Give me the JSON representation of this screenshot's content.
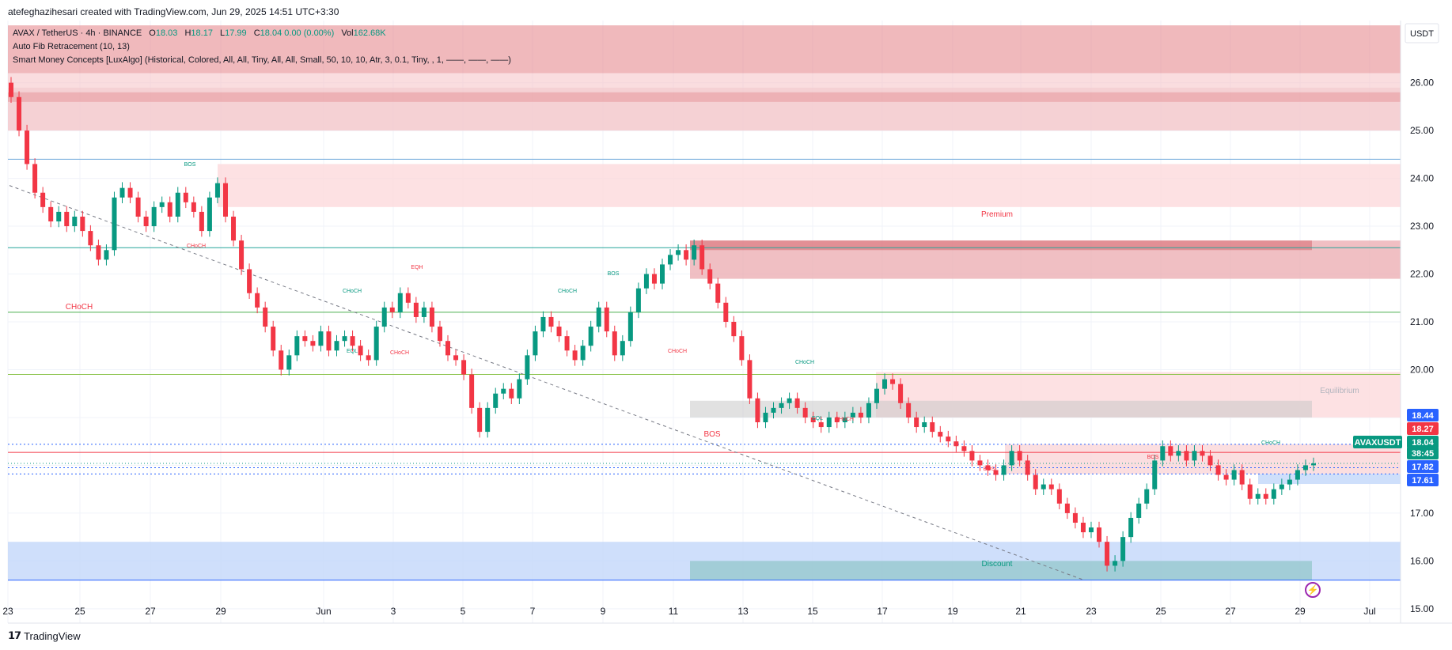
{
  "header": {
    "created_by": "atefeghazihesari created with TradingView.com, Jun 29, 2025 14:51 UTC+3:30"
  },
  "legend": {
    "symbol": "AVAX / TetherUS · 4h · BINANCE",
    "open_label": "O",
    "open": "18.03",
    "high_label": "H",
    "high": "18.17",
    "low_label": "L",
    "low": "17.99",
    "close_label": "C",
    "close": "18.04",
    "change": "0.00 (0.00%)",
    "vol_label": "Vol",
    "vol": "162.68K",
    "indicator1": "Auto Fib Retracement (10, 13)",
    "indicator2": "Smart Money Concepts [LuxAlgo] (Historical, Colored, All, All, Tiny, All, All, Small, 50, 10, 10, Atr, 3, 0.1, Tiny, , 1, ——, ——, ——)"
  },
  "footer": {
    "brand": "TradingView"
  },
  "colors": {
    "up": "#089981",
    "down": "#f23645",
    "premium": "#f7b5b9",
    "discount": "#b3cdf8",
    "equilibrium": "#c8c8c8"
  },
  "chart_data": {
    "type": "candlestick",
    "currency": "USDT",
    "ylim": [
      14.7,
      27.3
    ],
    "y_ticks": [
      15,
      16,
      17,
      18,
      19,
      20,
      21,
      22,
      23,
      24,
      25,
      26
    ],
    "y_tick_labels": [
      "15.00",
      "16.00",
      "17.00",
      "18.00",
      "19.00",
      "20.00",
      "21.00",
      "22.00",
      "23.00",
      "24.00",
      "25.00",
      "26.00"
    ],
    "x_tick_labels": [
      "23",
      "25",
      "27",
      "29",
      "Jun",
      "3",
      "5",
      "7",
      "9",
      "11",
      "13",
      "15",
      "17",
      "19",
      "21",
      "23",
      "25",
      "27",
      "29",
      "Jul"
    ],
    "price_tags": [
      {
        "value": "18.44",
        "kind": "blue"
      },
      {
        "value": "18.27",
        "kind": "red"
      },
      {
        "value": "18.04",
        "kind": "green"
      },
      {
        "value": "38:45",
        "kind": "green"
      },
      {
        "value": "17.82",
        "kind": "blue"
      },
      {
        "value": "17.61",
        "kind": "blue"
      }
    ],
    "symbol_tag": "AVAXUSDT",
    "zone_labels": {
      "premium": "Premium",
      "equilibrium": "Equilibrium",
      "discount": "Discount"
    },
    "annotations": [
      {
        "text": "CHoCH",
        "color": "red"
      },
      {
        "text": "BOS",
        "color": "green"
      },
      {
        "text": "CHoCH",
        "color": "red"
      },
      {
        "text": "CHoCH",
        "color": "green"
      },
      {
        "text": "EQL",
        "color": "green"
      },
      {
        "text": "EQH",
        "color": "red"
      },
      {
        "text": "CHoCH",
        "color": "red"
      },
      {
        "text": "CHoCH",
        "color": "green"
      },
      {
        "text": "BOS",
        "color": "green"
      },
      {
        "text": "CHoCH",
        "color": "red"
      },
      {
        "text": "CHoCH",
        "color": "green"
      },
      {
        "text": "EQL",
        "color": "green"
      },
      {
        "text": "CHoCH",
        "color": "red"
      },
      {
        "text": "BOS",
        "color": "red"
      },
      {
        "text": "BOS",
        "color": "red"
      },
      {
        "text": "BOS",
        "color": "red"
      },
      {
        "text": "CHoCH",
        "color": "green"
      }
    ],
    "closes": [
      25.7,
      25.0,
      24.3,
      23.7,
      23.4,
      23.1,
      23.3,
      23.0,
      23.2,
      22.9,
      22.6,
      22.3,
      22.5,
      23.6,
      23.8,
      23.6,
      23.2,
      23.0,
      23.4,
      23.5,
      23.2,
      23.7,
      23.5,
      23.3,
      22.9,
      23.6,
      23.9,
      23.2,
      22.7,
      22.1,
      21.6,
      21.3,
      20.9,
      20.4,
      20.0,
      20.3,
      20.7,
      20.6,
      20.5,
      20.8,
      20.4,
      20.6,
      20.7,
      20.5,
      20.3,
      20.2,
      20.9,
      21.3,
      21.2,
      21.6,
      21.4,
      21.1,
      21.3,
      20.9,
      20.6,
      20.3,
      20.2,
      19.9,
      19.2,
      18.7,
      19.2,
      19.5,
      19.6,
      19.4,
      19.8,
      20.3,
      20.8,
      21.1,
      20.9,
      20.7,
      20.4,
      20.2,
      20.5,
      20.9,
      21.3,
      20.8,
      20.3,
      20.6,
      21.2,
      21.7,
      22.0,
      21.8,
      22.2,
      22.4,
      22.5,
      22.3,
      22.6,
      22.1,
      21.8,
      21.4,
      21.0,
      20.7,
      20.2,
      19.4,
      18.9,
      19.1,
      19.2,
      19.3,
      19.4,
      19.2,
      19.0,
      18.9,
      18.8,
      19.0,
      18.9,
      19.0,
      19.1,
      19.0,
      19.3,
      19.6,
      19.8,
      19.7,
      19.3,
      19.0,
      18.8,
      18.9,
      18.7,
      18.6,
      18.5,
      18.4,
      18.3,
      18.1,
      18.0,
      17.9,
      17.8,
      18.0,
      18.3,
      18.1,
      17.8,
      17.5,
      17.6,
      17.5,
      17.2,
      17.0,
      16.8,
      16.6,
      16.7,
      16.4,
      15.9,
      16.0,
      16.5,
      16.9,
      17.2,
      17.5,
      18.1,
      18.4,
      18.2,
      18.3,
      18.1,
      18.3,
      18.2,
      18.0,
      17.8,
      17.7,
      17.9,
      17.6,
      17.3,
      17.4,
      17.3,
      17.5,
      17.6,
      17.7,
      17.9,
      18.0,
      18.04
    ]
  }
}
